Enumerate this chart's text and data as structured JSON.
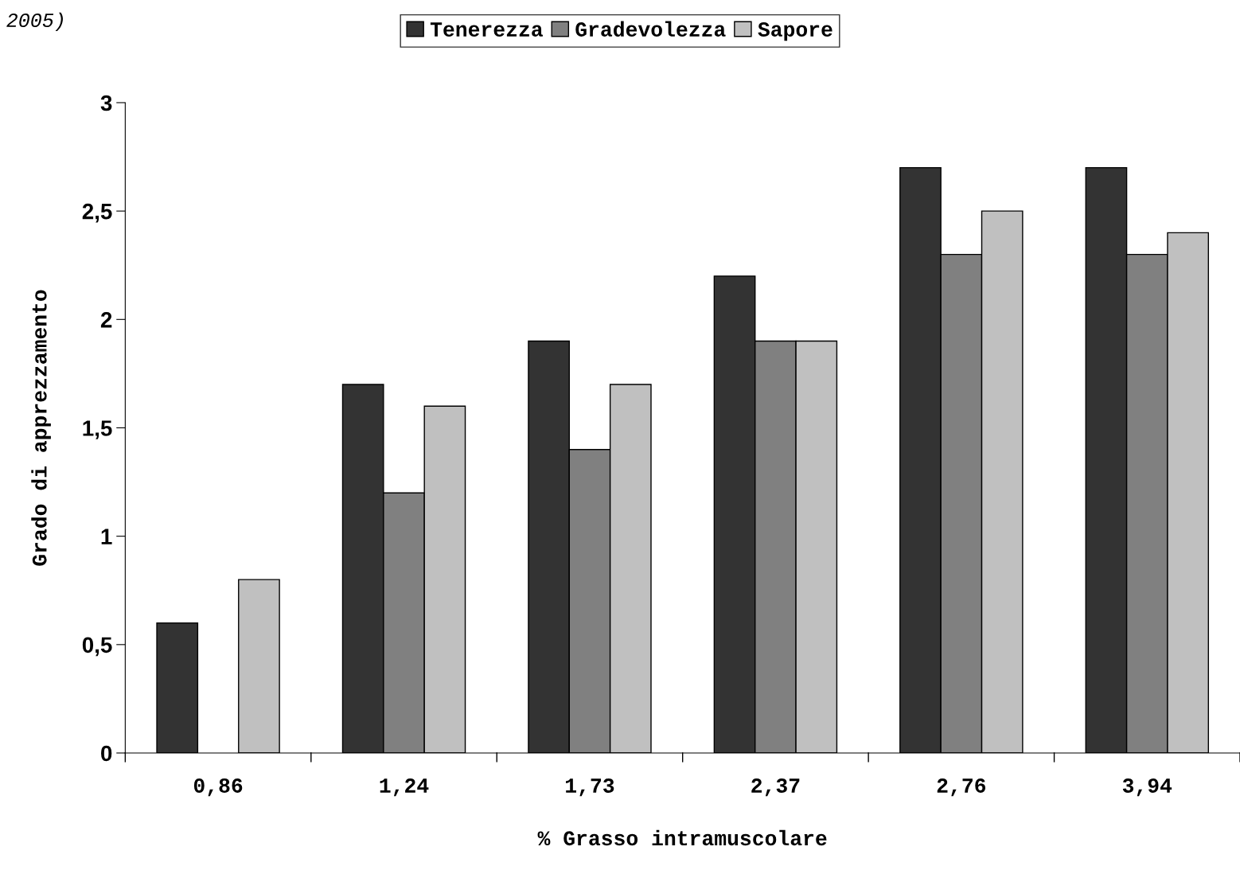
{
  "chart_data": {
    "type": "bar",
    "categories": [
      "0,86",
      "1,24",
      "1,73",
      "2,37",
      "2,76",
      "3,94"
    ],
    "series": [
      {
        "name": "Tenerezza",
        "color": "#333333",
        "values": [
          0.6,
          1.7,
          1.9,
          2.2,
          2.7,
          2.7
        ]
      },
      {
        "name": "Gradevolezza",
        "color": "#808080",
        "values": [
          null,
          1.2,
          1.4,
          1.9,
          2.3,
          2.3
        ]
      },
      {
        "name": "Sapore",
        "color": "#c0c0c0",
        "values": [
          0.8,
          1.6,
          1.7,
          1.9,
          2.5,
          2.4
        ]
      }
    ],
    "xlabel": "% Grasso intramuscolare",
    "ylabel": "Grado di apprezzamento",
    "ylim": [
      0,
      3
    ],
    "yticks": [
      0,
      {
        "value": 0.5,
        "label": "0,5"
      },
      1,
      {
        "value": 1.5,
        "label": "1,5"
      },
      2,
      {
        "value": 2.5,
        "label": "2,5"
      },
      3
    ],
    "annotations": [
      "2005)"
    ],
    "legend": "top",
    "grid": false
  }
}
